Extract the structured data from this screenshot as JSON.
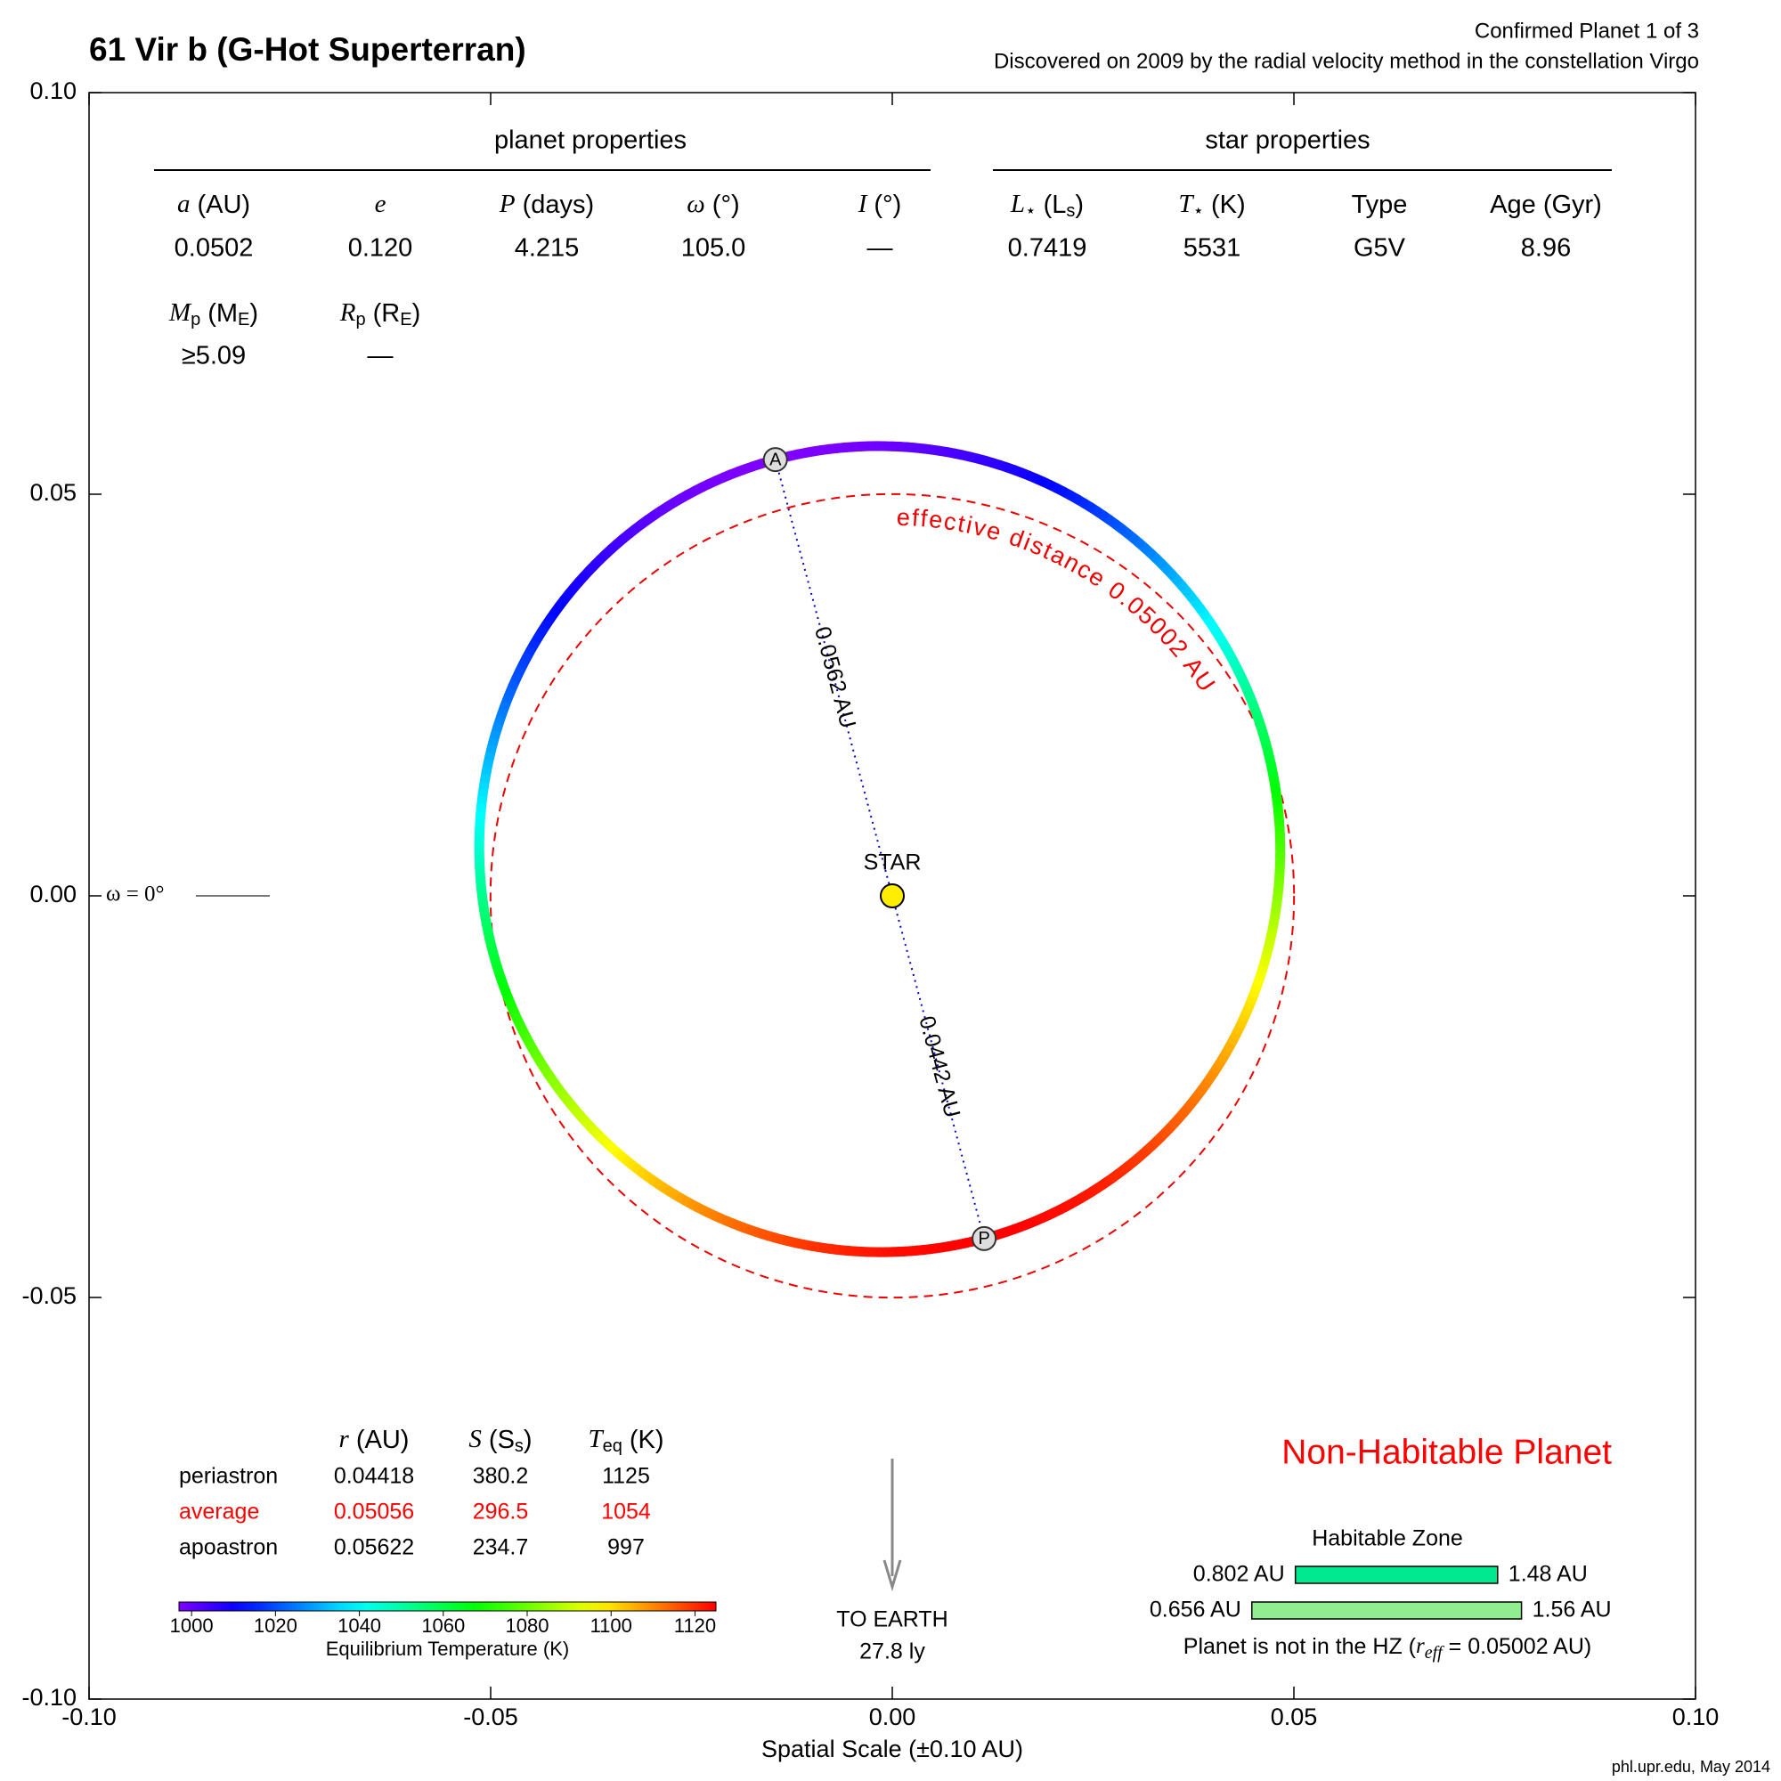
{
  "title": "61 Vir b (G-Hot Superterran)",
  "subtitle_1": "Confirmed Planet 1 of 3",
  "subtitle_2": "Discovered on 2009 by the radial velocity method in the constellation Virgo",
  "credit": "phl.upr.edu, May 2014",
  "chart_data": {
    "type": "orbit",
    "x_label": "Spatial Scale (±0.10 AU)",
    "xlim": [
      -0.1,
      0.1
    ],
    "ylim": [
      -0.1,
      0.1
    ],
    "xticks": [
      {
        "value": -0.1,
        "label": "-0.10"
      },
      {
        "value": -0.05,
        "label": "-0.05"
      },
      {
        "value": 0,
        "label": "0.00"
      },
      {
        "value": 0.05,
        "label": "0.05"
      },
      {
        "value": 0.1,
        "label": "0.10"
      }
    ],
    "yticks": [
      {
        "value": -0.1,
        "label": "-0.10"
      },
      {
        "value": -0.05,
        "label": "-0.05"
      },
      {
        "value": 0,
        "label": "0.00"
      },
      {
        "value": 0.05,
        "label": "0.05"
      },
      {
        "value": 0.1,
        "label": "0.10"
      }
    ],
    "orbit": {
      "a": 0.0502,
      "e": 0.12,
      "omega": 105,
      "periastron_label": "P",
      "apoastron_label": "A",
      "periastron_distance_label": "0.0442 AU",
      "apoastron_distance_label": "0.0562 AU"
    },
    "star_label": "STAR",
    "effective_distance": 0.05002,
    "effective_distance_label": "effective distance 0.05002 AU",
    "omega_reference_label": "ω = 0°",
    "earth_label": "TO EARTH",
    "earth_distance": "27.8 ly",
    "colorbar": {
      "title": "Equilibrium Temperature (K)",
      "lim": [
        997,
        1125
      ],
      "ticks": [
        1000,
        1020,
        1040,
        1060,
        1080,
        1100,
        1120
      ]
    }
  },
  "planet_properties": {
    "title": "planet properties",
    "headers": [
      {
        "symbol": "a",
        "unit": "(AU)"
      },
      {
        "symbol": "e"
      },
      {
        "symbol": "P",
        "unit": "(days)"
      },
      {
        "symbol": "ω",
        "unit": "(°)"
      },
      {
        "symbol": "I",
        "unit": "(°)"
      }
    ],
    "values": [
      "0.0502",
      "0.120",
      "4.215",
      "105.0",
      "—"
    ],
    "headers_2": [
      {
        "symbol": "M",
        "symbol_sub": "p",
        "unit": "(M",
        "unit_sub": "E",
        "unit_end": ")"
      },
      {
        "symbol": "R",
        "symbol_sub": "p",
        "unit": "(R",
        "unit_sub": "E",
        "unit_end": ")"
      }
    ],
    "values_2": [
      "≥5.09",
      "—"
    ]
  },
  "star_properties": {
    "title": "star properties",
    "headers": [
      {
        "symbol": "L",
        "symbol_sub": "⋆",
        "unit": "(L",
        "unit_sub": "s",
        "unit_end": ")"
      },
      {
        "symbol": "T",
        "symbol_sub": "⋆",
        "unit": "(K)"
      },
      {
        "unit": "Type"
      },
      {
        "unit": "Age (Gyr)"
      }
    ],
    "values": [
      "0.7419",
      "5531",
      "G5V",
      "8.96"
    ]
  },
  "distance_table": {
    "headers": [
      {
        "symbol": "r",
        "unit": "(AU)"
      },
      {
        "symbol": "S",
        "unit": "(S",
        "unit_sub": "s",
        "unit_end": ")"
      },
      {
        "symbol": "T",
        "symbol_sub": "eq",
        "unit": "(K)"
      }
    ],
    "rows": [
      [
        "periastron",
        "0.04418",
        "380.2",
        "1125"
      ],
      [
        "average",
        "0.05056",
        "296.5",
        "1054"
      ],
      [
        "apoastron",
        "0.05622",
        "234.7",
        "997"
      ]
    ],
    "highlight_row": 1,
    "highlight_color": "#ff0000"
  },
  "habitability": {
    "status": "Non-Habitable Planet",
    "status_color": "#ff0000",
    "title": "Habitable Zone",
    "conservative": [
      0.802,
      1.48
    ],
    "conservative_labels": [
      "0.802 AU",
      "1.48 AU"
    ],
    "conservative_color": "#00e890",
    "optimistic": [
      0.656,
      1.56
    ],
    "optimistic_labels": [
      "0.656 AU",
      "1.56 AU"
    ],
    "optimistic_color": "#90ee90",
    "note_prefix": "Planet is not in the HZ (",
    "note_symbol": "r",
    "note_sub": "eff",
    "note_suffix": " = 0.05002 AU)"
  }
}
